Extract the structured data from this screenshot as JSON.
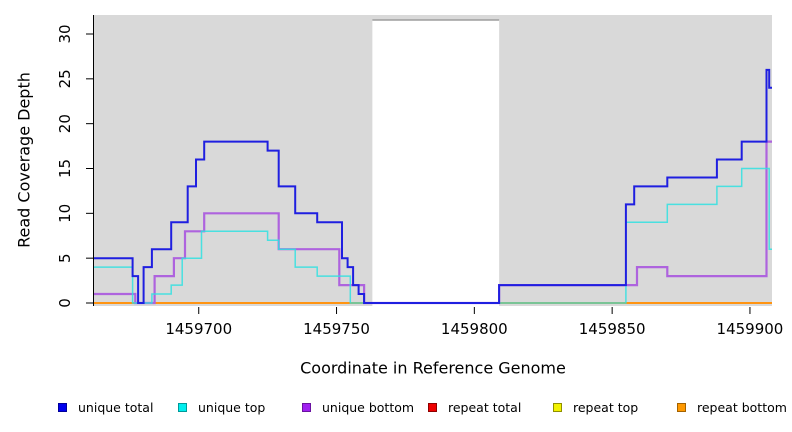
{
  "chart_data": {
    "type": "line",
    "subtype": "step-coverage-plot",
    "title": "",
    "xlabel": "Coordinate in Reference Genome",
    "ylabel": "Read Coverage Depth",
    "xlim": [
      1459662,
      1459908
    ],
    "ylim": [
      0,
      30
    ],
    "x_ticks": [
      1459700,
      1459750,
      1459800,
      1459850,
      1459900
    ],
    "y_ticks": [
      0,
      5,
      10,
      15,
      20,
      25,
      30
    ],
    "grid": "off",
    "plot_bg_color": "#D9D9D9",
    "zero_coverage_band": {
      "x_start": 1459763,
      "x_end": 1459809,
      "color": "#FFFFFF",
      "top_edge_color": "#9E9E9E"
    },
    "series": [
      {
        "name": "repeat total",
        "color": "#E00000",
        "line_width": 1.4,
        "points": [
          [
            1459662,
            0
          ]
        ]
      },
      {
        "name": "repeat top",
        "color": "#F0F000",
        "line_width": 1.4,
        "points": [
          [
            1459662,
            0
          ]
        ]
      },
      {
        "name": "repeat bottom",
        "color": "#FF9412",
        "line_width": 2,
        "points": [
          [
            1459662,
            0
          ]
        ]
      },
      {
        "name": "unique bottom",
        "color": "#AE63DE",
        "line_width": 2.2,
        "points": [
          [
            1459662,
            1
          ],
          [
            1459677,
            0
          ],
          [
            1459684,
            3
          ],
          [
            1459691,
            5
          ],
          [
            1459695,
            8
          ],
          [
            1459702,
            10
          ],
          [
            1459729,
            6
          ],
          [
            1459751,
            2
          ],
          [
            1459760,
            0
          ],
          [
            1459809,
            2
          ],
          [
            1459859,
            4
          ],
          [
            1459870,
            3
          ],
          [
            1459906,
            18
          ]
        ]
      },
      {
        "name": "unique top",
        "color": "#2FE0E0",
        "line_width": 1.5,
        "opacity": 0.85,
        "points": [
          [
            1459662,
            4
          ],
          [
            1459676,
            0
          ],
          [
            1459683,
            1
          ],
          [
            1459690,
            2
          ],
          [
            1459694,
            5
          ],
          [
            1459701,
            8
          ],
          [
            1459725,
            7
          ],
          [
            1459729,
            6
          ],
          [
            1459735,
            4
          ],
          [
            1459743,
            3
          ],
          [
            1459755,
            0
          ],
          [
            1459855,
            9
          ],
          [
            1459870,
            11
          ],
          [
            1459888,
            13
          ],
          [
            1459897,
            15
          ],
          [
            1459907,
            6
          ]
        ]
      },
      {
        "name": "unique total",
        "color": "#1F1FE0",
        "line_width": 2,
        "points": [
          [
            1459662,
            5
          ],
          [
            1459676,
            3
          ],
          [
            1459678,
            0
          ],
          [
            1459680,
            4
          ],
          [
            1459683,
            6
          ],
          [
            1459690,
            9
          ],
          [
            1459696,
            13
          ],
          [
            1459699,
            16
          ],
          [
            1459702,
            18
          ],
          [
            1459725,
            17
          ],
          [
            1459729,
            13
          ],
          [
            1459735,
            10
          ],
          [
            1459743,
            9
          ],
          [
            1459752,
            5
          ],
          [
            1459754,
            4
          ],
          [
            1459756,
            2
          ],
          [
            1459758,
            1
          ],
          [
            1459760,
            0
          ],
          [
            1459809,
            2
          ],
          [
            1459855,
            11
          ],
          [
            1459858,
            13
          ],
          [
            1459870,
            14
          ],
          [
            1459888,
            16
          ],
          [
            1459897,
            18
          ],
          [
            1459906,
            26
          ],
          [
            1459907,
            24
          ]
        ]
      }
    ],
    "legend": {
      "position": "bottom",
      "entries": [
        {
          "label": "unique total",
          "fill": "#0000EE",
          "border": "#00009A"
        },
        {
          "label": "unique top",
          "fill": "#00EEEE",
          "border": "#009999"
        },
        {
          "label": "unique bottom",
          "fill": "#A020F0",
          "border": "#6A12A0"
        },
        {
          "label": "repeat total",
          "fill": "#EE0000",
          "border": "#8E0000"
        },
        {
          "label": "repeat top",
          "fill": "#F2F200",
          "border": "#909000"
        },
        {
          "label": "repeat bottom",
          "fill": "#FF9900",
          "border": "#A36200"
        }
      ]
    }
  }
}
